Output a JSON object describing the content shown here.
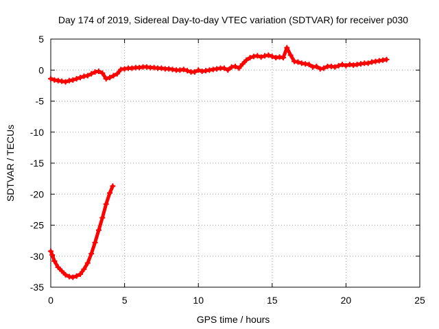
{
  "chart_data": {
    "type": "scatter",
    "title": "Day 174 of 2019, Sidereal Day-to-day VTEC variation (SDTVAR) for receiver p030",
    "xlabel": "GPS time / hours",
    "ylabel": "SDTVAR / TECUs",
    "xlim": [
      0,
      25
    ],
    "ylim": [
      -35,
      5
    ],
    "xticks": [
      0,
      5,
      10,
      15,
      20,
      25
    ],
    "yticks": [
      5,
      0,
      -5,
      -10,
      -15,
      -20,
      -25,
      -30,
      -35
    ],
    "xtick_labels": [
      "0",
      "5",
      "10",
      "15",
      "20",
      "25"
    ],
    "ytick_labels": [
      "5",
      "0",
      "-5",
      "-10",
      "-15",
      "-20",
      "-25",
      "-30",
      "-35"
    ],
    "grid": true,
    "marker": "plus",
    "series": [
      {
        "name": "SDTVAR main",
        "color": "#ff0000",
        "x": [
          0.0,
          0.25,
          0.5,
          0.75,
          1.0,
          1.25,
          1.5,
          1.75,
          2.0,
          2.25,
          2.5,
          2.75,
          3.0,
          3.25,
          3.5,
          3.75,
          4.0,
          4.25,
          4.5,
          4.75,
          5.0,
          5.25,
          5.5,
          5.75,
          6.0,
          6.25,
          6.5,
          6.75,
          7.0,
          7.25,
          7.5,
          7.75,
          8.0,
          8.25,
          8.5,
          8.75,
          9.0,
          9.25,
          9.5,
          9.75,
          10.0,
          10.25,
          10.5,
          10.75,
          11.0,
          11.25,
          11.5,
          11.75,
          12.0,
          12.25,
          12.5,
          12.75,
          13.0,
          13.25,
          13.5,
          13.75,
          14.0,
          14.25,
          14.5,
          14.75,
          15.0,
          15.25,
          15.5,
          15.75,
          16.0,
          16.25,
          16.5,
          16.75,
          17.0,
          17.25,
          17.5,
          17.75,
          18.0,
          18.25,
          18.5,
          18.75,
          19.0,
          19.25,
          19.5,
          19.75,
          20.0,
          20.25,
          20.5,
          20.75,
          21.0,
          21.25,
          21.5,
          21.75,
          22.0,
          22.25,
          22.5,
          22.75
        ],
        "y": [
          -1.4,
          -1.6,
          -1.7,
          -1.8,
          -1.9,
          -1.7,
          -1.6,
          -1.4,
          -1.2,
          -1.0,
          -0.9,
          -0.6,
          -0.3,
          -0.2,
          -0.5,
          -1.4,
          -1.2,
          -0.9,
          -0.6,
          0.1,
          0.2,
          0.3,
          0.3,
          0.4,
          0.4,
          0.5,
          0.5,
          0.4,
          0.4,
          0.3,
          0.3,
          0.2,
          0.2,
          0.1,
          0.0,
          0.0,
          0.1,
          -0.1,
          -0.3,
          -0.3,
          0.0,
          -0.2,
          -0.1,
          0.0,
          0.1,
          0.2,
          0.3,
          0.3,
          0.0,
          0.5,
          0.6,
          0.3,
          1.0,
          1.6,
          2.0,
          2.2,
          2.3,
          2.1,
          2.3,
          2.4,
          2.2,
          2.0,
          2.1,
          2.0,
          3.6,
          2.4,
          1.4,
          1.3,
          1.1,
          1.0,
          0.9,
          0.5,
          0.6,
          0.2,
          0.3,
          0.6,
          0.6,
          0.5,
          0.7,
          0.9,
          0.7,
          0.9,
          0.8,
          0.9,
          1.0,
          1.1,
          1.1,
          1.3,
          1.4,
          1.5,
          1.6,
          1.7
        ]
      },
      {
        "name": "SDTVAR early segment",
        "color": "#ff0000",
        "x": [
          0.0,
          0.1,
          0.25,
          0.5,
          0.75,
          1.0,
          1.25,
          1.5,
          1.75,
          2.0,
          2.25,
          2.5,
          2.75,
          3.0,
          3.25,
          3.5,
          3.75,
          4.0,
          4.2
        ],
        "y": [
          -29.2,
          -29.8,
          -30.8,
          -31.8,
          -32.4,
          -33.0,
          -33.3,
          -33.4,
          -33.2,
          -32.9,
          -32.1,
          -31.1,
          -29.6,
          -27.8,
          -25.8,
          -23.8,
          -21.6,
          -19.8,
          -18.7
        ]
      }
    ]
  }
}
